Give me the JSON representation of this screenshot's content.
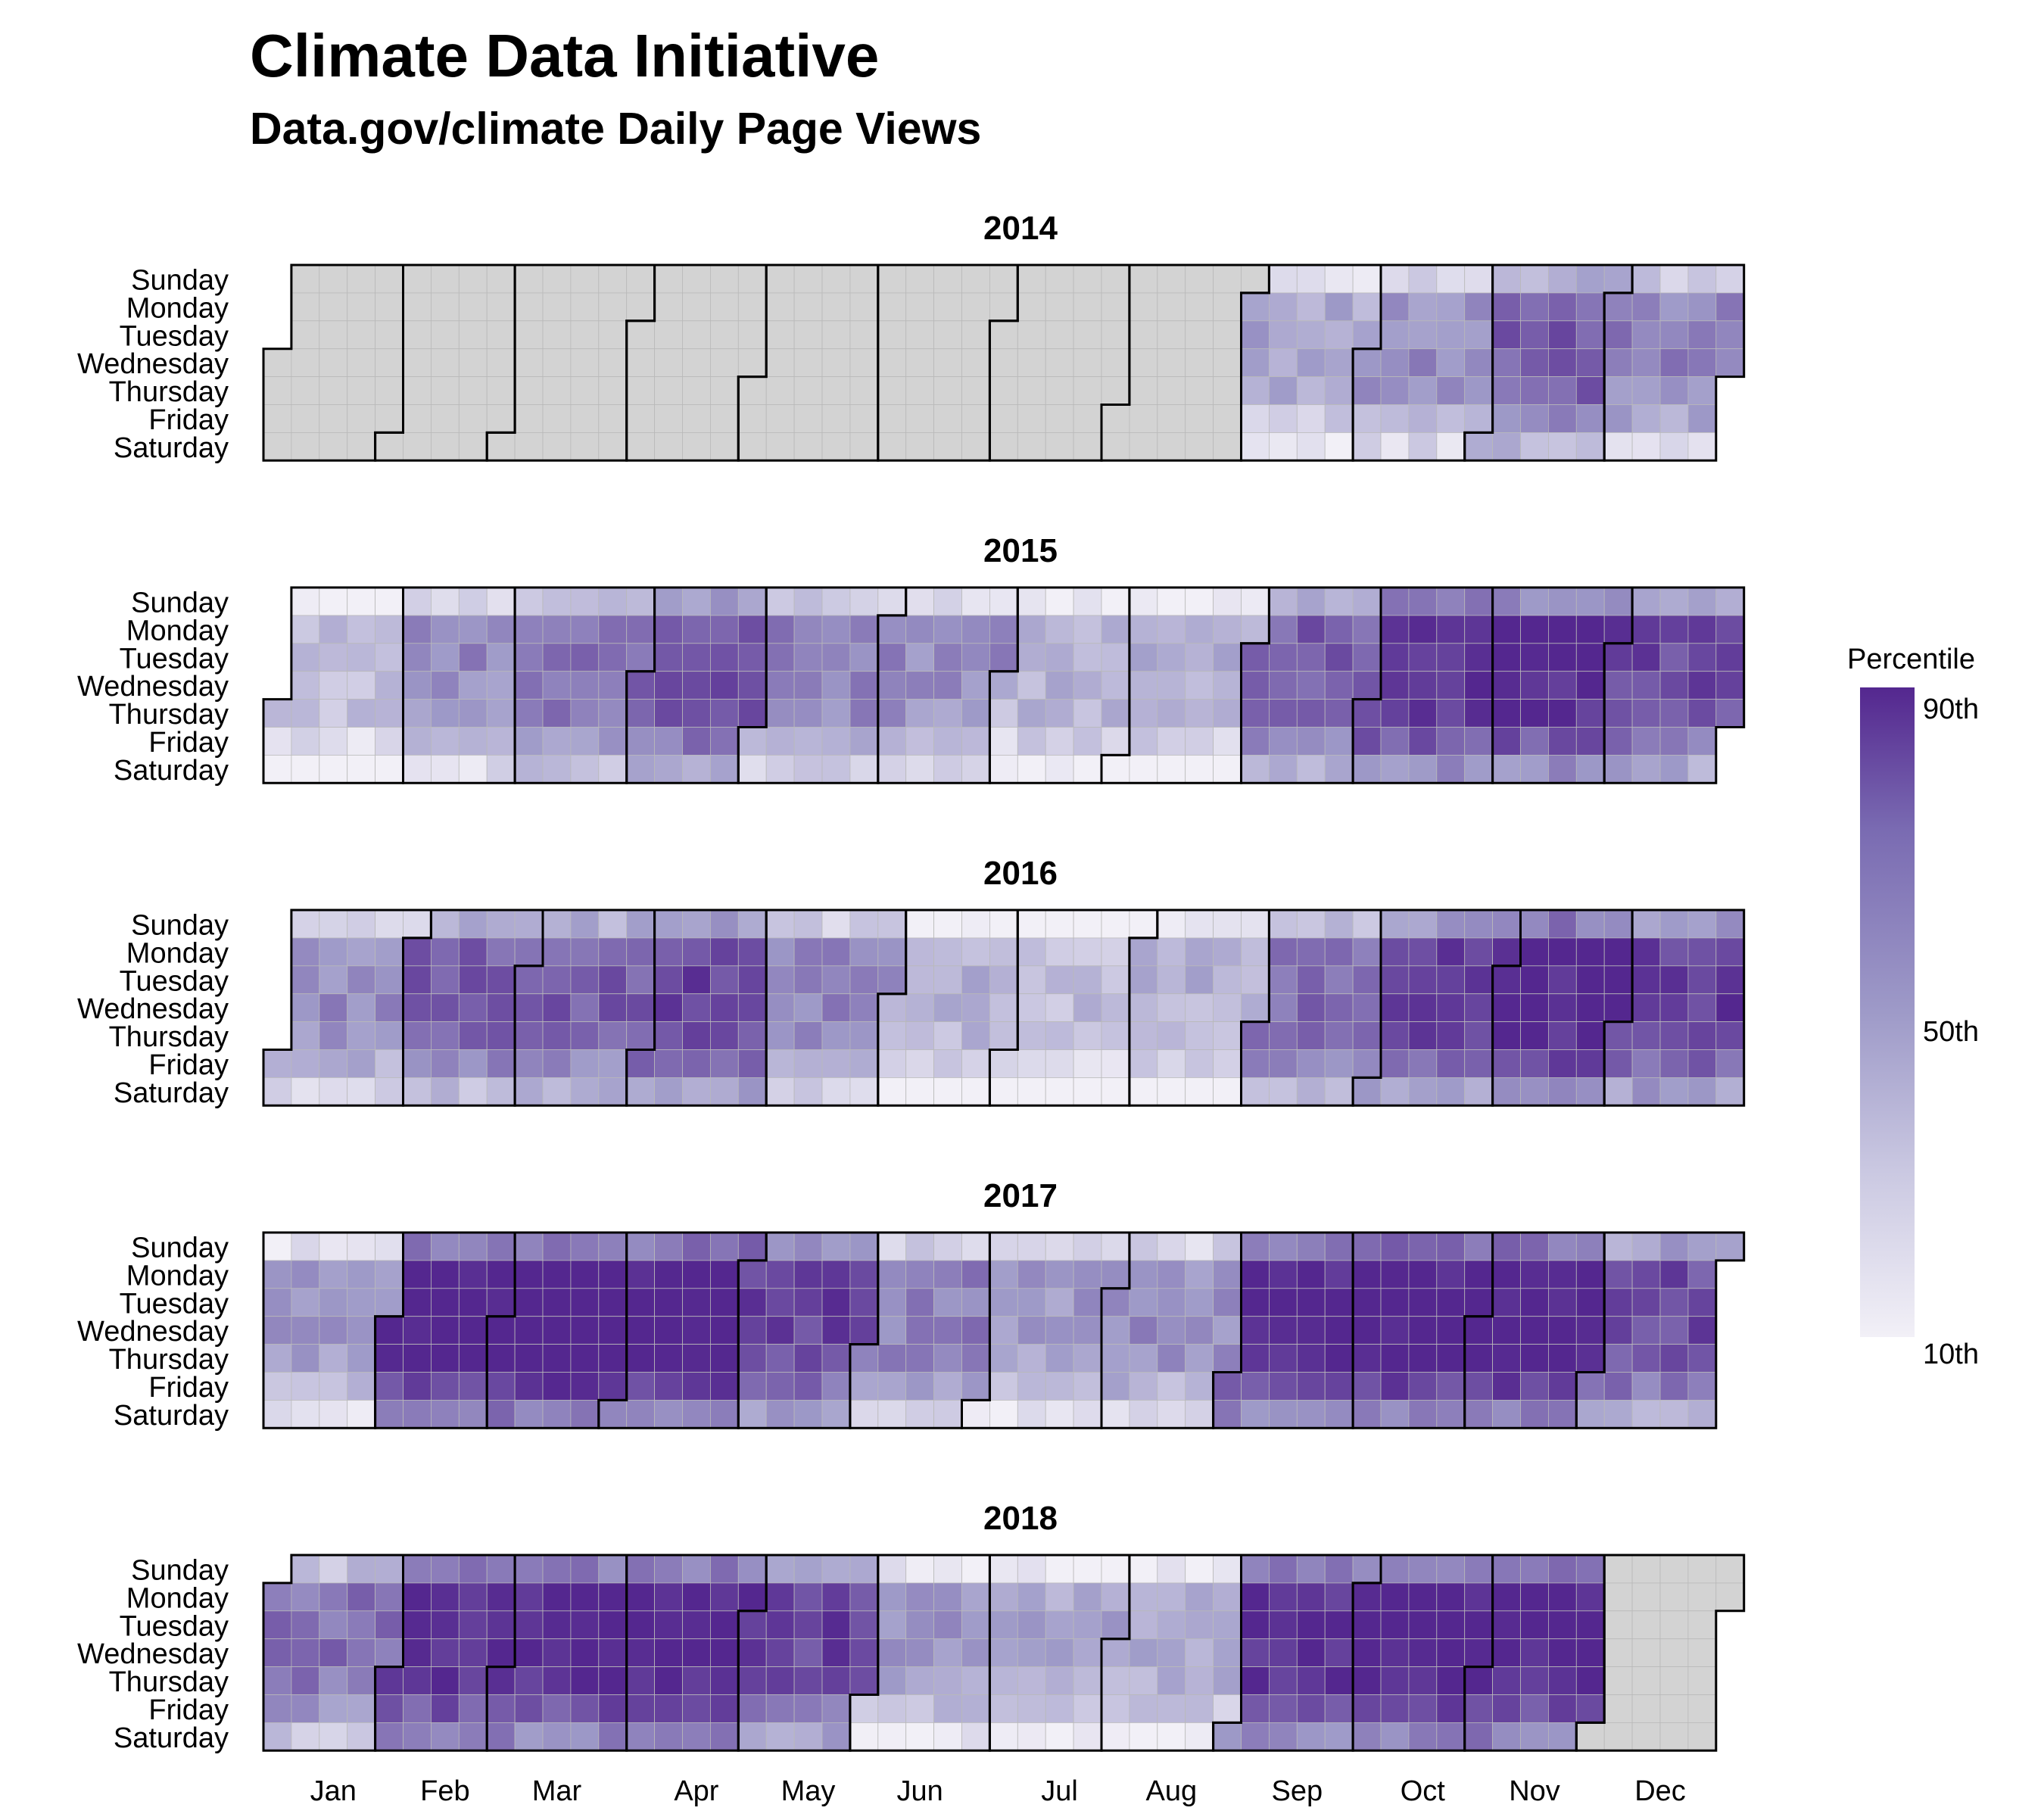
{
  "title": "Climate Data Initiative",
  "subtitle": "Data.gov/climate Daily Page Views",
  "chart_data": {
    "type": "heatmap",
    "title": "Climate Data Initiative",
    "subtitle": "Data.gov/climate Daily Page Views",
    "layout": "calendar (weekday rows × week columns, faceted by year)",
    "years": [
      "2014",
      "2015",
      "2016",
      "2017",
      "2018"
    ],
    "weekdays": [
      "Sunday",
      "Monday",
      "Tuesday",
      "Wednesday",
      "Thursday",
      "Friday",
      "Saturday"
    ],
    "months": [
      "Jan",
      "Feb",
      "Mar",
      "Apr",
      "May",
      "Jun",
      "Jul",
      "Aug",
      "Sep",
      "Oct",
      "Nov",
      "Dec"
    ],
    "value": "percentile of daily page views",
    "missing_color": "#d3d3d3",
    "color_scale": {
      "low": "#f2f0f7",
      "mid": "#9e9ac8",
      "high": "#54278f",
      "range": [
        10,
        90
      ]
    },
    "legend": {
      "title": "Percentile",
      "ticks": [
        "90th",
        "50th",
        "10th"
      ],
      "position": "right"
    },
    "monthly_levels": {
      "2014": [
        null,
        null,
        null,
        null,
        null,
        null,
        null,
        null,
        35,
        45,
        62,
        50
      ],
      "2015": [
        25,
        45,
        55,
        68,
        50,
        45,
        30,
        30,
        62,
        78,
        80,
        68
      ],
      "2016": [
        45,
        60,
        62,
        70,
        48,
        30,
        25,
        30,
        58,
        72,
        82,
        72
      ],
      "2017": [
        40,
        85,
        88,
        86,
        72,
        50,
        40,
        45,
        82,
        86,
        85,
        68
      ],
      "2018": [
        55,
        80,
        82,
        82,
        70,
        40,
        35,
        35,
        80,
        86,
        84,
        null
      ]
    },
    "data_available": {
      "2014": {
        "start": "2014-09-01",
        "end": "2014-12-31"
      },
      "2018": {
        "start": "2018-01-01",
        "end": "2018-11-30"
      }
    }
  }
}
